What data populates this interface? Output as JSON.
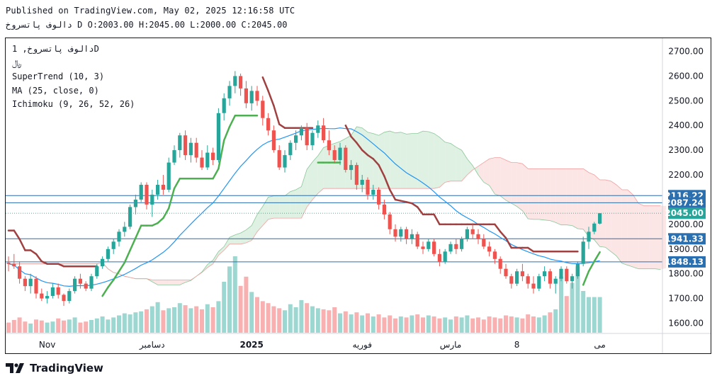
{
  "header": {
    "published": "Published on TradingView.com, May 02, 2025 12:16:58 UTC",
    "symbol_line": "دالوف پاتسروخ",
    "interval": "D",
    "open": "O:2003.00",
    "high": "H:2045.00",
    "low": "L:2000.00",
    "close": "C:2045.00"
  },
  "legend": {
    "title": "دالوف پاتسروخ, 1D",
    "currency": "﷼",
    "supertrend": "SuperTrend (10, 3)",
    "ma": "MA (25, close, 0)",
    "ichimoku": "Ichimoku (9, 26, 52, 26)"
  },
  "footer": {
    "brand": "TradingView"
  },
  "colors": {
    "up": "#26a69a",
    "down": "#ef5350",
    "supertrend_up": "#4caf50",
    "supertrend_down": "#a04040",
    "ma": "#2196f3",
    "cloud_green": "#d4ecd8",
    "cloud_red": "#fbdcdc",
    "level_line": "#2a6fb0"
  },
  "chart_data": {
    "type": "candlestick",
    "y_axis_ticks": [
      "2700.00",
      "2600.00",
      "2500.00",
      "2400.00",
      "2300.00",
      "2200.00",
      "2100.00",
      "2000.00",
      "1900.00",
      "1800.00",
      "1700.00",
      "1600.00"
    ],
    "ylim": [
      1560,
      2740
    ],
    "x_axis_labels": [
      {
        "label": "Nov",
        "index": 7
      },
      {
        "label": "دسامبر",
        "index": 26
      },
      {
        "label": "2025",
        "index": 44
      },
      {
        "label": "فوریه",
        "index": 64
      },
      {
        "label": "مارس",
        "index": 80
      },
      {
        "label": "8",
        "index": 92
      },
      {
        "label": "می",
        "index": 107
      }
    ],
    "price_labels": [
      {
        "value": 2116.22,
        "text": "2116.22",
        "color": "#2a6fb0"
      },
      {
        "value": 2087.24,
        "text": "2087.24",
        "color": "#2a6fb0"
      },
      {
        "value": 2045.0,
        "text": "2045.00",
        "color": "#26a69a"
      },
      {
        "value": 1941.33,
        "text": "1941.33",
        "color": "#2a6fb0"
      },
      {
        "value": 1848.13,
        "text": "1848.13",
        "color": "#2a6fb0"
      }
    ],
    "candles": [
      [
        1845,
        1870,
        1810,
        1840
      ],
      [
        1840,
        1880,
        1820,
        1830
      ],
      [
        1830,
        1850,
        1760,
        1780
      ],
      [
        1780,
        1790,
        1730,
        1750
      ],
      [
        1750,
        1800,
        1720,
        1780
      ],
      [
        1780,
        1790,
        1700,
        1720
      ],
      [
        1720,
        1740,
        1690,
        1700
      ],
      [
        1700,
        1730,
        1680,
        1710
      ],
      [
        1710,
        1760,
        1700,
        1745
      ],
      [
        1745,
        1760,
        1700,
        1715
      ],
      [
        1715,
        1720,
        1670,
        1690
      ],
      [
        1690,
        1740,
        1680,
        1730
      ],
      [
        1730,
        1790,
        1720,
        1780
      ],
      [
        1780,
        1800,
        1740,
        1760
      ],
      [
        1760,
        1770,
        1730,
        1740
      ],
      [
        1740,
        1800,
        1730,
        1790
      ],
      [
        1790,
        1840,
        1780,
        1830
      ],
      [
        1830,
        1870,
        1820,
        1860
      ],
      [
        1860,
        1910,
        1850,
        1900
      ],
      [
        1900,
        1940,
        1880,
        1930
      ],
      [
        1930,
        1980,
        1910,
        1970
      ],
      [
        1970,
        2010,
        1950,
        1990
      ],
      [
        1990,
        2080,
        1980,
        2070
      ],
      [
        2070,
        2120,
        2040,
        2100
      ],
      [
        2100,
        2170,
        2090,
        2160
      ],
      [
        2160,
        2170,
        2060,
        2080
      ],
      [
        2080,
        2140,
        2030,
        2120
      ],
      [
        2120,
        2180,
        2100,
        2160
      ],
      [
        2160,
        2200,
        2120,
        2140
      ],
      [
        2140,
        2270,
        2130,
        2250
      ],
      [
        2250,
        2320,
        2240,
        2300
      ],
      [
        2300,
        2370,
        2270,
        2360
      ],
      [
        2360,
        2380,
        2260,
        2280
      ],
      [
        2280,
        2350,
        2250,
        2330
      ],
      [
        2330,
        2350,
        2250,
        2270
      ],
      [
        2270,
        2300,
        2220,
        2230
      ],
      [
        2230,
        2320,
        2220,
        2290
      ],
      [
        2290,
        2310,
        2240,
        2260
      ],
      [
        2260,
        2470,
        2250,
        2450
      ],
      [
        2450,
        2530,
        2420,
        2510
      ],
      [
        2510,
        2580,
        2480,
        2560
      ],
      [
        2560,
        2620,
        2530,
        2600
      ],
      [
        2600,
        2610,
        2520,
        2550
      ],
      [
        2550,
        2580,
        2470,
        2490
      ],
      [
        2490,
        2560,
        2460,
        2540
      ],
      [
        2540,
        2560,
        2480,
        2500
      ],
      [
        2500,
        2520,
        2400,
        2430
      ],
      [
        2430,
        2450,
        2360,
        2380
      ],
      [
        2380,
        2400,
        2290,
        2300
      ],
      [
        2300,
        2320,
        2220,
        2230
      ],
      [
        2230,
        2300,
        2210,
        2280
      ],
      [
        2280,
        2340,
        2260,
        2330
      ],
      [
        2330,
        2380,
        2300,
        2360
      ],
      [
        2360,
        2400,
        2340,
        2390
      ],
      [
        2390,
        2410,
        2300,
        2320
      ],
      [
        2320,
        2380,
        2300,
        2370
      ],
      [
        2370,
        2420,
        2350,
        2400
      ],
      [
        2400,
        2430,
        2330,
        2340
      ],
      [
        2340,
        2380,
        2280,
        2300
      ],
      [
        2300,
        2320,
        2250,
        2260
      ],
      [
        2260,
        2330,
        2240,
        2310
      ],
      [
        2310,
        2320,
        2210,
        2220
      ],
      [
        2220,
        2260,
        2180,
        2240
      ],
      [
        2240,
        2250,
        2140,
        2160
      ],
      [
        2160,
        2200,
        2130,
        2180
      ],
      [
        2180,
        2190,
        2100,
        2120
      ],
      [
        2120,
        2160,
        2100,
        2140
      ],
      [
        2140,
        2150,
        2060,
        2080
      ],
      [
        2080,
        2100,
        2020,
        2040
      ],
      [
        2040,
        2050,
        1960,
        1980
      ],
      [
        1980,
        2000,
        1930,
        1950
      ],
      [
        1950,
        1990,
        1930,
        1980
      ],
      [
        1980,
        1990,
        1920,
        1940
      ],
      [
        1940,
        1980,
        1920,
        1960
      ],
      [
        1960,
        1970,
        1900,
        1910
      ],
      [
        1910,
        1930,
        1880,
        1900
      ],
      [
        1900,
        1940,
        1890,
        1930
      ],
      [
        1930,
        1940,
        1870,
        1880
      ],
      [
        1880,
        1900,
        1830,
        1850
      ],
      [
        1850,
        1900,
        1840,
        1890
      ],
      [
        1890,
        1930,
        1880,
        1920
      ],
      [
        1920,
        1940,
        1880,
        1900
      ],
      [
        1900,
        1950,
        1890,
        1940
      ],
      [
        1940,
        1990,
        1930,
        1980
      ],
      [
        1980,
        2000,
        1940,
        1960
      ],
      [
        1960,
        1980,
        1920,
        1940
      ],
      [
        1940,
        1960,
        1900,
        1910
      ],
      [
        1910,
        1930,
        1870,
        1890
      ],
      [
        1890,
        1900,
        1840,
        1860
      ],
      [
        1860,
        1870,
        1800,
        1820
      ],
      [
        1820,
        1840,
        1780,
        1790
      ],
      [
        1790,
        1800,
        1740,
        1760
      ],
      [
        1760,
        1820,
        1750,
        1810
      ],
      [
        1810,
        1840,
        1770,
        1790
      ],
      [
        1790,
        1800,
        1740,
        1760
      ],
      [
        1760,
        1790,
        1720,
        1740
      ],
      [
        1740,
        1800,
        1730,
        1790
      ],
      [
        1790,
        1830,
        1770,
        1810
      ],
      [
        1810,
        1820,
        1740,
        1760
      ],
      [
        1760,
        1790,
        1720,
        1780
      ],
      [
        1780,
        1830,
        1770,
        1820
      ],
      [
        1820,
        1830,
        1760,
        1770
      ],
      [
        1770,
        1800,
        1740,
        1790
      ],
      [
        1790,
        1850,
        1780,
        1840
      ],
      [
        1840,
        1950,
        1830,
        1930
      ],
      [
        1930,
        1990,
        1900,
        1970
      ],
      [
        1970,
        2010,
        1960,
        2003
      ],
      [
        2003,
        2045,
        2000,
        2045
      ]
    ],
    "volumes": [
      20,
      25,
      30,
      22,
      18,
      26,
      24,
      20,
      22,
      28,
      24,
      26,
      30,
      20,
      22,
      25,
      28,
      32,
      26,
      30,
      34,
      38,
      36,
      40,
      42,
      46,
      52,
      60,
      44,
      48,
      50,
      58,
      54,
      48,
      52,
      46,
      56,
      50,
      62,
      100,
      130,
      150,
      92,
      110,
      80,
      70,
      62,
      58,
      52,
      48,
      44,
      56,
      50,
      64,
      58,
      52,
      48,
      46,
      44,
      50,
      38,
      42,
      36,
      40,
      34,
      38,
      32,
      36,
      30,
      34,
      28,
      32,
      30,
      34,
      36,
      30,
      34,
      32,
      28,
      30,
      26,
      32,
      30,
      34,
      28,
      30,
      26,
      32,
      30,
      28,
      34,
      32,
      30,
      28,
      36,
      32,
      30,
      34,
      40,
      46,
      110,
      72,
      98,
      130,
      82,
      70,
      70,
      70
    ]
  }
}
